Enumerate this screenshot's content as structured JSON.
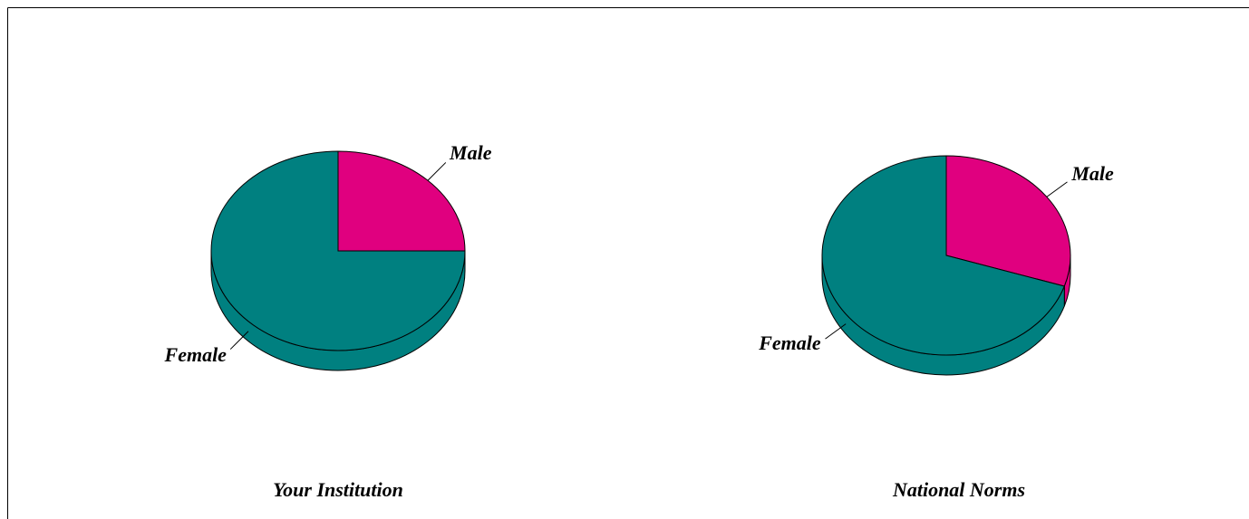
{
  "chart_data": [
    {
      "type": "pie",
      "title": "Your Institution",
      "categories": [
        "Male",
        "Female"
      ],
      "values": [
        25,
        75
      ],
      "colors": [
        "#e0007f",
        "#008080"
      ]
    },
    {
      "type": "pie",
      "title": "National Norms",
      "categories": [
        "Male",
        "Female"
      ],
      "values": [
        30,
        70
      ],
      "colors": [
        "#e0007f",
        "#008080"
      ]
    }
  ]
}
